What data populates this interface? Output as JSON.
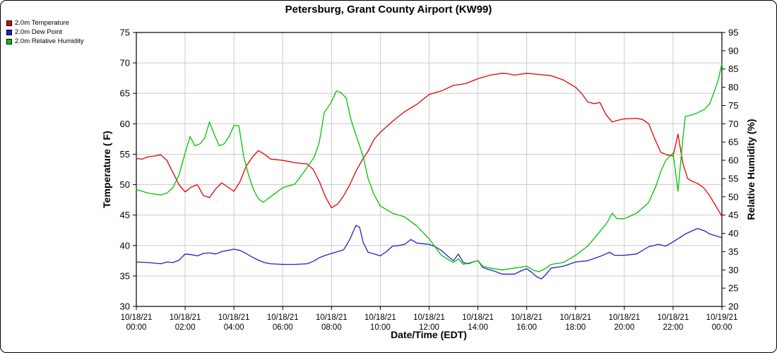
{
  "chart_data": {
    "type": "line",
    "title": "Petersburg, Grant County Airport (KW99)",
    "xlabel": "Date/Time (EDT)",
    "ylabel_left": "Temperature ( F)",
    "ylabel_right": "Relative Humidity (%)",
    "grid": true,
    "grid_color": "#cccccc",
    "legend_position": "top-left",
    "x_range": [
      0,
      24
    ],
    "y_left_range": [
      30,
      75
    ],
    "y_left_ticks": [
      30,
      35,
      40,
      45,
      50,
      55,
      60,
      65,
      70,
      75
    ],
    "y_right_range": [
      20,
      95
    ],
    "y_right_ticks": [
      20,
      25,
      30,
      35,
      40,
      45,
      50,
      55,
      60,
      65,
      70,
      75,
      80,
      85,
      90,
      95
    ],
    "x_ticks": [
      {
        "hour": 0,
        "date": "10/18/21",
        "time": "00:00"
      },
      {
        "hour": 2,
        "date": "10/18/21",
        "time": "02:00"
      },
      {
        "hour": 4,
        "date": "10/18/21",
        "time": "04:00"
      },
      {
        "hour": 6,
        "date": "10/18/21",
        "time": "06:00"
      },
      {
        "hour": 8,
        "date": "10/18/21",
        "time": "08:00"
      },
      {
        "hour": 10,
        "date": "10/18/21",
        "time": "10:00"
      },
      {
        "hour": 12,
        "date": "10/18/21",
        "time": "12:00"
      },
      {
        "hour": 14,
        "date": "10/18/21",
        "time": "14:00"
      },
      {
        "hour": 16,
        "date": "10/18/21",
        "time": "16:00"
      },
      {
        "hour": 18,
        "date": "10/18/21",
        "time": "18:00"
      },
      {
        "hour": 20,
        "date": "10/18/21",
        "time": "20:00"
      },
      {
        "hour": 22,
        "date": "10/18/21",
        "time": "22:00"
      },
      {
        "hour": 24,
        "date": "10/19/21",
        "time": "00:00"
      }
    ],
    "series": [
      {
        "name": "2.0m Temperature",
        "color": "#e60000",
        "axis": "left",
        "points": [
          [
            0,
            54.3
          ],
          [
            0.25,
            54.2
          ],
          [
            0.5,
            54.6
          ],
          [
            0.75,
            54.7
          ],
          [
            1,
            54.9
          ],
          [
            1.25,
            54.0
          ],
          [
            1.5,
            52.0
          ],
          [
            1.75,
            50.0
          ],
          [
            2,
            48.8
          ],
          [
            2.25,
            49.6
          ],
          [
            2.5,
            50.0
          ],
          [
            2.75,
            48.2
          ],
          [
            3,
            47.9
          ],
          [
            3.25,
            49.3
          ],
          [
            3.5,
            50.3
          ],
          [
            3.75,
            49.6
          ],
          [
            4,
            48.9
          ],
          [
            4.25,
            50.5
          ],
          [
            4.5,
            53.0
          ],
          [
            4.75,
            54.5
          ],
          [
            5,
            55.6
          ],
          [
            5.25,
            55.0
          ],
          [
            5.5,
            54.2
          ],
          [
            5.75,
            54.1
          ],
          [
            6,
            54.0
          ],
          [
            6.25,
            53.8
          ],
          [
            6.5,
            53.6
          ],
          [
            6.75,
            53.5
          ],
          [
            7,
            53.4
          ],
          [
            7.25,
            52.5
          ],
          [
            7.5,
            50.5
          ],
          [
            7.75,
            48.0
          ],
          [
            8,
            46.2
          ],
          [
            8.25,
            46.8
          ],
          [
            8.5,
            48.2
          ],
          [
            8.75,
            50.0
          ],
          [
            9,
            52.2
          ],
          [
            9.25,
            54.0
          ],
          [
            9.5,
            55.5
          ],
          [
            9.75,
            57.5
          ],
          [
            10,
            58.6
          ],
          [
            10.25,
            59.5
          ],
          [
            10.5,
            60.4
          ],
          [
            10.75,
            61.2
          ],
          [
            11,
            62.0
          ],
          [
            11.5,
            63.2
          ],
          [
            12,
            64.8
          ],
          [
            12.5,
            65.4
          ],
          [
            13,
            66.3
          ],
          [
            13.5,
            66.6
          ],
          [
            14,
            67.4
          ],
          [
            14.5,
            68.0
          ],
          [
            15,
            68.3
          ],
          [
            15.25,
            68.2
          ],
          [
            15.5,
            68.0
          ],
          [
            16,
            68.3
          ],
          [
            16.5,
            68.1
          ],
          [
            17,
            67.9
          ],
          [
            17.5,
            67.2
          ],
          [
            18,
            66.0
          ],
          [
            18.25,
            65.0
          ],
          [
            18.5,
            63.6
          ],
          [
            18.75,
            63.3
          ],
          [
            19,
            63.5
          ],
          [
            19.25,
            61.5
          ],
          [
            19.5,
            60.3
          ],
          [
            19.75,
            60.6
          ],
          [
            20,
            60.8
          ],
          [
            20.5,
            60.9
          ],
          [
            20.75,
            60.7
          ],
          [
            21,
            60.0
          ],
          [
            21.25,
            57.5
          ],
          [
            21.5,
            55.3
          ],
          [
            21.75,
            54.9
          ],
          [
            22,
            54.7
          ],
          [
            22.2,
            58.3
          ],
          [
            22.4,
            53.5
          ],
          [
            22.6,
            51.0
          ],
          [
            22.8,
            50.5
          ],
          [
            23,
            50.2
          ],
          [
            23.25,
            49.5
          ],
          [
            23.5,
            48.2
          ],
          [
            23.75,
            46.5
          ],
          [
            24,
            44.8
          ]
        ]
      },
      {
        "name": "2.0m Dew Point",
        "color": "#2020cc",
        "axis": "left",
        "points": [
          [
            0,
            37.3
          ],
          [
            0.5,
            37.2
          ],
          [
            1,
            37.0
          ],
          [
            1.25,
            37.3
          ],
          [
            1.5,
            37.2
          ],
          [
            1.75,
            37.6
          ],
          [
            2,
            38.6
          ],
          [
            2.25,
            38.5
          ],
          [
            2.5,
            38.3
          ],
          [
            2.75,
            38.7
          ],
          [
            3,
            38.8
          ],
          [
            3.25,
            38.6
          ],
          [
            3.5,
            39.0
          ],
          [
            3.75,
            39.2
          ],
          [
            4,
            39.4
          ],
          [
            4.25,
            39.2
          ],
          [
            4.5,
            38.7
          ],
          [
            4.75,
            38.1
          ],
          [
            5,
            37.6
          ],
          [
            5.25,
            37.2
          ],
          [
            5.5,
            37.0
          ],
          [
            6,
            36.9
          ],
          [
            6.5,
            36.9
          ],
          [
            7,
            37.0
          ],
          [
            7.25,
            37.4
          ],
          [
            7.5,
            38.0
          ],
          [
            7.75,
            38.4
          ],
          [
            8,
            38.7
          ],
          [
            8.25,
            39.0
          ],
          [
            8.5,
            39.3
          ],
          [
            8.75,
            41.0
          ],
          [
            9,
            43.3
          ],
          [
            9.15,
            43.0
          ],
          [
            9.3,
            40.5
          ],
          [
            9.5,
            38.9
          ],
          [
            9.75,
            38.6
          ],
          [
            10,
            38.3
          ],
          [
            10.25,
            39.0
          ],
          [
            10.5,
            39.9
          ],
          [
            10.75,
            40.0
          ],
          [
            11,
            40.2
          ],
          [
            11.25,
            41.0
          ],
          [
            11.5,
            40.4
          ],
          [
            11.75,
            40.3
          ],
          [
            12,
            40.2
          ],
          [
            12.25,
            39.8
          ],
          [
            12.5,
            39.2
          ],
          [
            12.75,
            38.3
          ],
          [
            13,
            37.5
          ],
          [
            13.2,
            38.6
          ],
          [
            13.4,
            37.2
          ],
          [
            13.6,
            37.0
          ],
          [
            13.8,
            37.3
          ],
          [
            14,
            37.5
          ],
          [
            14.2,
            36.4
          ],
          [
            14.4,
            36.1
          ],
          [
            14.6,
            35.9
          ],
          [
            15,
            35.3
          ],
          [
            15.5,
            35.3
          ],
          [
            15.75,
            35.8
          ],
          [
            16,
            36.2
          ],
          [
            16.2,
            35.6
          ],
          [
            16.4,
            34.9
          ],
          [
            16.6,
            34.5
          ],
          [
            16.8,
            35.3
          ],
          [
            17,
            36.3
          ],
          [
            17.5,
            36.6
          ],
          [
            18,
            37.3
          ],
          [
            18.5,
            37.5
          ],
          [
            19,
            38.2
          ],
          [
            19.4,
            38.9
          ],
          [
            19.6,
            38.4
          ],
          [
            20,
            38.4
          ],
          [
            20.5,
            38.6
          ],
          [
            21,
            39.8
          ],
          [
            21.4,
            40.2
          ],
          [
            21.7,
            39.9
          ],
          [
            22,
            40.6
          ],
          [
            22.5,
            41.9
          ],
          [
            23,
            42.8
          ],
          [
            23.3,
            42.4
          ],
          [
            23.5,
            41.9
          ],
          [
            24,
            41.3
          ]
        ]
      },
      {
        "name": "2.0m Relative Humidity",
        "color": "#00c400",
        "axis": "right",
        "points": [
          [
            0,
            52
          ],
          [
            0.5,
            51
          ],
          [
            1,
            50.5
          ],
          [
            1.25,
            51
          ],
          [
            1.5,
            52.5
          ],
          [
            1.75,
            56
          ],
          [
            2,
            62
          ],
          [
            2.2,
            66.5
          ],
          [
            2.4,
            64
          ],
          [
            2.6,
            64.5
          ],
          [
            2.8,
            66
          ],
          [
            3,
            70.5
          ],
          [
            3.2,
            67
          ],
          [
            3.4,
            64
          ],
          [
            3.6,
            64.5
          ],
          [
            3.8,
            66.5
          ],
          [
            4,
            69.5
          ],
          [
            4.2,
            69.5
          ],
          [
            4.4,
            61
          ],
          [
            4.6,
            56
          ],
          [
            4.8,
            52
          ],
          [
            5,
            49.5
          ],
          [
            5.2,
            48.5
          ],
          [
            5.4,
            49.5
          ],
          [
            5.6,
            50.5
          ],
          [
            6,
            52.5
          ],
          [
            6.5,
            53.5
          ],
          [
            7,
            58
          ],
          [
            7.3,
            61
          ],
          [
            7.5,
            65
          ],
          [
            7.7,
            73
          ],
          [
            8,
            76
          ],
          [
            8.2,
            79
          ],
          [
            8.4,
            78.5
          ],
          [
            8.6,
            77
          ],
          [
            8.8,
            71
          ],
          [
            9,
            67
          ],
          [
            9.3,
            61
          ],
          [
            9.5,
            55
          ],
          [
            9.75,
            50.5
          ],
          [
            10,
            47.5
          ],
          [
            10.5,
            45.5
          ],
          [
            11,
            44.5
          ],
          [
            11.5,
            42
          ],
          [
            12,
            38.5
          ],
          [
            12.5,
            34
          ],
          [
            13,
            32
          ],
          [
            13.2,
            33
          ],
          [
            13.4,
            31.5
          ],
          [
            13.7,
            32
          ],
          [
            14,
            32.5
          ],
          [
            14.2,
            31
          ],
          [
            14.5,
            30.5
          ],
          [
            15,
            30
          ],
          [
            15.5,
            30.5
          ],
          [
            16,
            31
          ],
          [
            16.3,
            29.8
          ],
          [
            16.5,
            29.5
          ],
          [
            16.8,
            30.5
          ],
          [
            17,
            31.5
          ],
          [
            17.5,
            32
          ],
          [
            18,
            34
          ],
          [
            18.5,
            36.5
          ],
          [
            19,
            40.5
          ],
          [
            19.3,
            43
          ],
          [
            19.5,
            45.5
          ],
          [
            19.7,
            44
          ],
          [
            20,
            44
          ],
          [
            20.5,
            45.5
          ],
          [
            21,
            48.5
          ],
          [
            21.3,
            53
          ],
          [
            21.5,
            57
          ],
          [
            21.7,
            60
          ],
          [
            22,
            62
          ],
          [
            22.2,
            51.5
          ],
          [
            22.4,
            66
          ],
          [
            22.5,
            72
          ],
          [
            22.8,
            72.5
          ],
          [
            23,
            73
          ],
          [
            23.3,
            74
          ],
          [
            23.5,
            75.5
          ],
          [
            23.7,
            79
          ],
          [
            23.85,
            82
          ],
          [
            24,
            86.5
          ]
        ]
      }
    ]
  }
}
